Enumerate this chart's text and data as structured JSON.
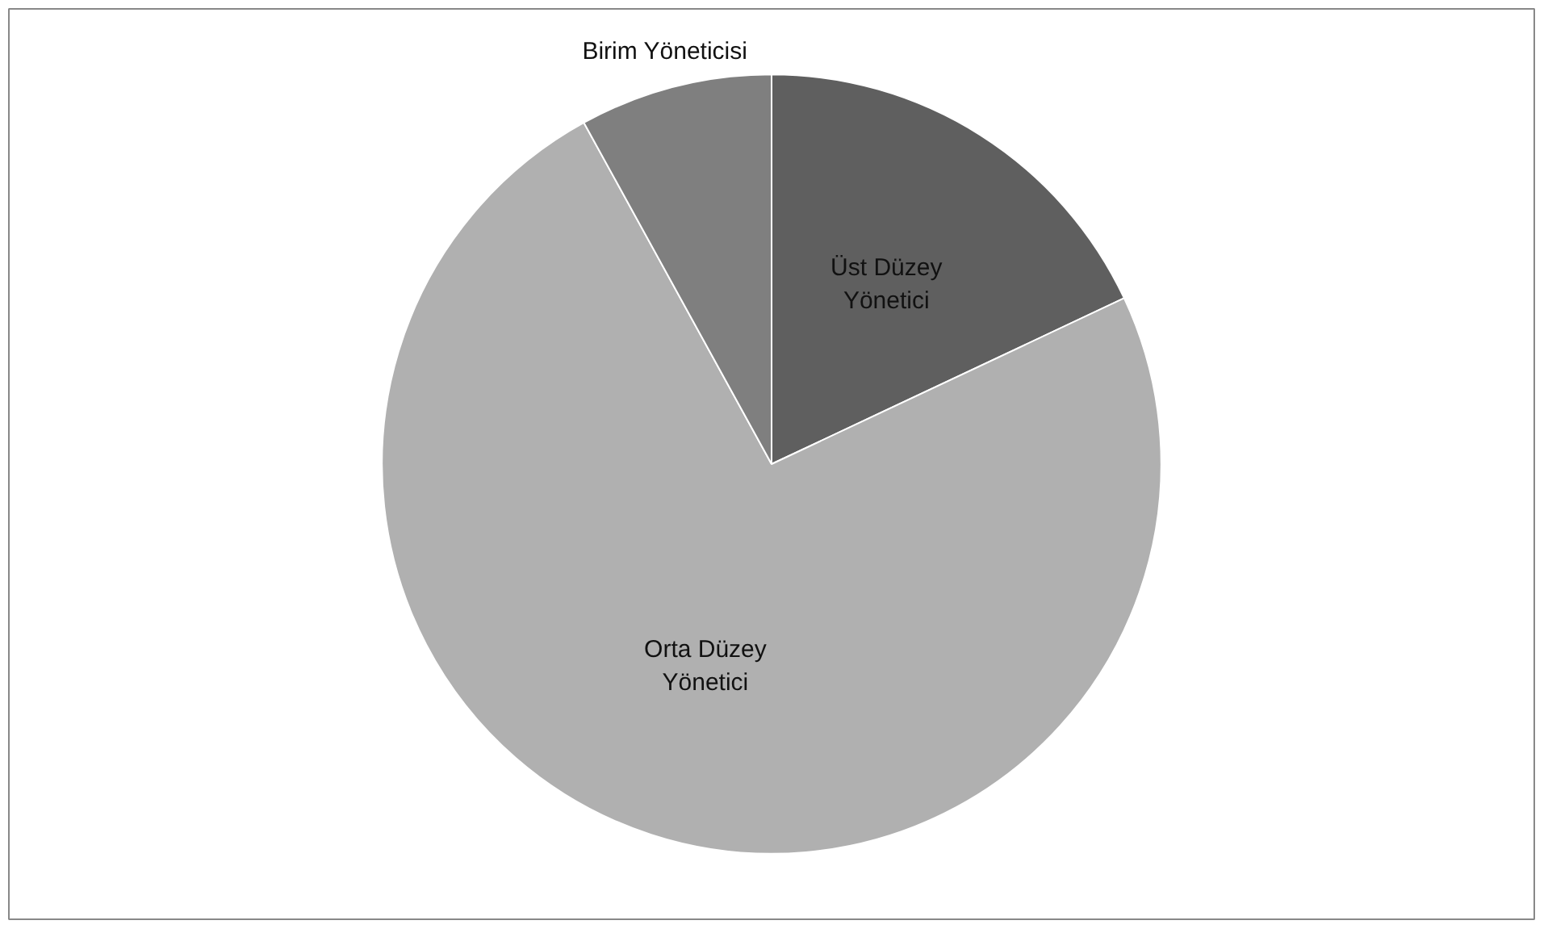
{
  "chart_data": {
    "type": "pie",
    "categories": [
      "Üst Düzey Yönetici",
      "Orta Düzey Yönetici",
      "Birim Yöneticisi"
    ],
    "values": [
      18,
      74,
      8
    ],
    "colors": [
      "#5f5f5f",
      "#b0b0b0",
      "#7f7f7f"
    ],
    "legend": false
  }
}
